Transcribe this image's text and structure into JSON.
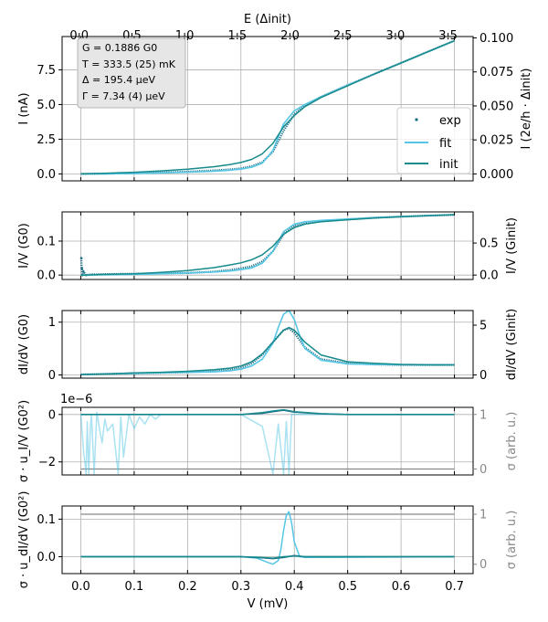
{
  "chart_data": {
    "type": "line",
    "colors": {
      "exp": "#1a6e86",
      "fit": "#55c6e6",
      "init": "#178a8c",
      "grid": "#b0b0b0",
      "aux": "#888888"
    },
    "top_axis": {
      "label": "E (Δinit)",
      "ticks": [
        "0.0",
        "0.5",
        "1.0",
        "1.5",
        "2.0",
        "2.5",
        "3.0",
        "3.5"
      ],
      "tick_values": [
        0,
        0.5,
        1.0,
        1.5,
        2.0,
        2.5,
        3.0,
        3.5
      ],
      "xlim": [
        -0.1625,
        3.7375
      ]
    },
    "x_axis": {
      "label": "V (mV)",
      "ticks": [
        "0.0",
        "0.1",
        "0.2",
        "0.3",
        "0.4",
        "0.5",
        "0.6",
        "0.7"
      ],
      "tick_values": [
        0,
        0.1,
        0.2,
        0.3,
        0.4,
        0.5,
        0.6,
        0.7
      ],
      "xlim": [
        -0.035,
        0.735
      ]
    },
    "annotation": {
      "lines": [
        "G = 0.1886 G0",
        "T = 333.5 (25) mK",
        "Δ = 195.4 μeV",
        "Γ = 7.34 (4) μeV"
      ]
    },
    "legend": {
      "position": "lower-right",
      "entries": [
        "exp",
        "fit",
        "init"
      ]
    },
    "panels": [
      {
        "id": "current",
        "ylabel": "I (nA)",
        "ylabel_right": "I (2e/h · Δinit)",
        "ylim": [
          -0.5,
          9.9
        ],
        "yticks": [
          "0.0",
          "2.5",
          "5.0",
          "7.5"
        ],
        "ytick_values": [
          0,
          2.5,
          5.0,
          7.5
        ],
        "yticks_right": [
          "0.000",
          "0.025",
          "0.050",
          "0.075",
          "0.100"
        ],
        "ytick_values_right": [
          0,
          2.45,
          4.9,
          7.35,
          9.8
        ],
        "series": [
          {
            "name": "exp",
            "style": "dots",
            "x": [
              0,
              0.05,
              0.1,
              0.15,
              0.2,
              0.25,
              0.28,
              0.3,
              0.32,
              0.34,
              0.36,
              0.38,
              0.4,
              0.42,
              0.45,
              0.5,
              0.55,
              0.6,
              0.65,
              0.7
            ],
            "y": [
              0,
              0.02,
              0.05,
              0.1,
              0.16,
              0.25,
              0.32,
              0.4,
              0.55,
              0.85,
              1.6,
              3.1,
              4.3,
              4.95,
              5.55,
              6.4,
              7.2,
              8.0,
              8.8,
              9.6
            ]
          },
          {
            "name": "fit",
            "style": "line",
            "x": [
              0,
              0.05,
              0.1,
              0.15,
              0.2,
              0.25,
              0.28,
              0.3,
              0.32,
              0.34,
              0.36,
              0.38,
              0.4,
              0.42,
              0.45,
              0.5,
              0.55,
              0.6,
              0.65,
              0.7
            ],
            "y": [
              0,
              0.01,
              0.03,
              0.07,
              0.12,
              0.2,
              0.27,
              0.34,
              0.48,
              0.78,
              1.7,
              3.6,
              4.55,
              5.0,
              5.55,
              6.4,
              7.2,
              8.0,
              8.8,
              9.6
            ]
          },
          {
            "name": "init",
            "style": "line",
            "x": [
              0,
              0.05,
              0.1,
              0.15,
              0.2,
              0.25,
              0.28,
              0.3,
              0.32,
              0.34,
              0.36,
              0.38,
              0.4,
              0.42,
              0.45,
              0.5,
              0.55,
              0.6,
              0.65,
              0.7
            ],
            "y": [
              0,
              0.05,
              0.12,
              0.22,
              0.34,
              0.52,
              0.68,
              0.82,
              1.05,
              1.45,
              2.2,
              3.4,
              4.2,
              4.85,
              5.5,
              6.35,
              7.2,
              8.0,
              8.8,
              9.6
            ]
          }
        ]
      },
      {
        "id": "conductance",
        "ylabel": "I/V (G0)",
        "ylabel_right": "I/V (Ginit)",
        "ylim": [
          -0.013,
          0.186
        ],
        "yticks": [
          "0.0",
          "0.1"
        ],
        "ytick_values": [
          0,
          0.1
        ],
        "yticks_right": [
          "0.0",
          "0.5"
        ],
        "ytick_values_right": [
          0,
          0.0943
        ],
        "series": [
          {
            "name": "exp",
            "style": "dots",
            "x": [
              0.001,
              0.002,
              0.003,
              0.005,
              0.01,
              0.02,
              0.05,
              0.1,
              0.15,
              0.2,
              0.25,
              0.28,
              0.3,
              0.32,
              0.34,
              0.36,
              0.38,
              0.4,
              0.42,
              0.45,
              0.5,
              0.55,
              0.6,
              0.65,
              0.7
            ],
            "y": [
              0.05,
              0.02,
              0.0,
              0.01,
              0.0,
              0.002,
              0.003,
              0.004,
              0.005,
              0.006,
              0.01,
              0.015,
              0.02,
              0.026,
              0.04,
              0.07,
              0.12,
              0.145,
              0.152,
              0.158,
              0.164,
              0.169,
              0.172,
              0.175,
              0.177
            ]
          },
          {
            "name": "fit",
            "style": "line",
            "x": [
              0,
              0.05,
              0.1,
              0.15,
              0.2,
              0.25,
              0.28,
              0.3,
              0.32,
              0.34,
              0.36,
              0.38,
              0.4,
              0.42,
              0.45,
              0.5,
              0.55,
              0.6,
              0.65,
              0.7
            ],
            "y": [
              0,
              0.001,
              0.002,
              0.004,
              0.006,
              0.009,
              0.012,
              0.016,
              0.021,
              0.035,
              0.07,
              0.128,
              0.15,
              0.157,
              0.161,
              0.165,
              0.169,
              0.172,
              0.175,
              0.178
            ]
          },
          {
            "name": "init",
            "style": "line",
            "x": [
              0,
              0.05,
              0.1,
              0.15,
              0.2,
              0.25,
              0.28,
              0.3,
              0.32,
              0.34,
              0.36,
              0.38,
              0.4,
              0.42,
              0.45,
              0.5,
              0.55,
              0.6,
              0.65,
              0.7
            ],
            "y": [
              0,
              0.002,
              0.004,
              0.008,
              0.013,
              0.022,
              0.03,
              0.036,
              0.045,
              0.06,
              0.085,
              0.12,
              0.14,
              0.15,
              0.157,
              0.163,
              0.168,
              0.172,
              0.175,
              0.178
            ]
          }
        ]
      },
      {
        "id": "differential",
        "ylabel": "dI/dV (G0)",
        "ylabel_right": "dI/dV (Ginit)",
        "ylim": [
          -0.06,
          1.22
        ],
        "yticks": [
          "0",
          "1"
        ],
        "ytick_values": [
          0,
          1
        ],
        "yticks_right": [
          "0",
          "5"
        ],
        "ytick_values_right": [
          0,
          0.943
        ],
        "series": [
          {
            "name": "exp",
            "style": "dots",
            "x": [
              0,
              0.05,
              0.1,
              0.15,
              0.2,
              0.25,
              0.28,
              0.3,
              0.32,
              0.34,
              0.36,
              0.38,
              0.39,
              0.4,
              0.42,
              0.45,
              0.5,
              0.55,
              0.6,
              0.65,
              0.7
            ],
            "y": [
              0.01,
              0.02,
              0.03,
              0.04,
              0.05,
              0.07,
              0.1,
              0.14,
              0.22,
              0.38,
              0.62,
              0.85,
              0.88,
              0.8,
              0.52,
              0.3,
              0.22,
              0.2,
              0.19,
              0.19,
              0.19
            ]
          },
          {
            "name": "fit",
            "style": "line",
            "x": [
              0,
              0.05,
              0.1,
              0.15,
              0.2,
              0.25,
              0.28,
              0.3,
              0.32,
              0.34,
              0.36,
              0.37,
              0.38,
              0.39,
              0.4,
              0.41,
              0.42,
              0.45,
              0.5,
              0.55,
              0.6,
              0.65,
              0.7
            ],
            "y": [
              0.01,
              0.02,
              0.03,
              0.04,
              0.05,
              0.06,
              0.08,
              0.11,
              0.17,
              0.3,
              0.6,
              0.9,
              1.15,
              1.22,
              1.05,
              0.75,
              0.5,
              0.28,
              0.21,
              0.2,
              0.19,
              0.19,
              0.19
            ]
          },
          {
            "name": "init",
            "style": "line",
            "x": [
              0,
              0.05,
              0.1,
              0.15,
              0.2,
              0.25,
              0.28,
              0.3,
              0.32,
              0.34,
              0.36,
              0.38,
              0.39,
              0.4,
              0.42,
              0.45,
              0.5,
              0.55,
              0.6,
              0.65,
              0.7
            ],
            "y": [
              0.01,
              0.02,
              0.04,
              0.05,
              0.07,
              0.1,
              0.13,
              0.17,
              0.25,
              0.4,
              0.62,
              0.85,
              0.9,
              0.85,
              0.62,
              0.38,
              0.25,
              0.22,
              0.2,
              0.19,
              0.19
            ]
          }
        ]
      },
      {
        "id": "uncertainty_iv",
        "ylabel": "σ · u_I/V (G0²)",
        "ylabel_right": "σ (arb. u.)",
        "offset_text": "1e−6",
        "ylim": [
          -2.55,
          0.3
        ],
        "yticks": [
          "0",
          "−2"
        ],
        "ytick_values": [
          0,
          -2
        ],
        "yticks_right": [
          "0",
          "1"
        ],
        "ytick_values_right": [
          -2.3,
          0
        ],
        "series": [
          {
            "name": "sigma-envelope",
            "style": "aux",
            "x": [
              0,
              0.7
            ],
            "y": [
              -2.3,
              -2.3
            ]
          },
          {
            "name": "fit-uncertainty",
            "style": "fit-light",
            "x": [
              0,
              0.005,
              0.01,
              0.012,
              0.015,
              0.018,
              0.02,
              0.025,
              0.03,
              0.035,
              0.04,
              0.045,
              0.05,
              0.06,
              0.07,
              0.075,
              0.08,
              0.09,
              0.1,
              0.11,
              0.12,
              0.13,
              0.14,
              0.15,
              0.18,
              0.2,
              0.3,
              0.34,
              0.35,
              0.36,
              0.37,
              0.38,
              0.385,
              0.39,
              0.395,
              0.4,
              0.5,
              0.6,
              0.7
            ],
            "y": [
              0,
              -1.5,
              -2.5,
              -0.3,
              -2.5,
              -0.5,
              0.0,
              -2.5,
              0.1,
              -0.6,
              -1.2,
              -0.2,
              -0.7,
              -0.4,
              -2.5,
              -0.1,
              -1.8,
              0.0,
              -0.6,
              -0.1,
              -0.4,
              0.0,
              -0.2,
              0.0,
              0.0,
              0.0,
              0.0,
              -0.5,
              -1.5,
              -2.5,
              -0.4,
              -2.5,
              -0.3,
              -2.5,
              0.0,
              0.0,
              0.0,
              0.0,
              0.0
            ]
          },
          {
            "name": "exp",
            "style": "line-exp",
            "x": [
              0,
              0.1,
              0.2,
              0.3,
              0.34,
              0.36,
              0.38,
              0.4,
              0.45,
              0.5,
              0.6,
              0.7
            ],
            "y": [
              0,
              0,
              0,
              0,
              0.05,
              0.12,
              0.18,
              0.1,
              0.03,
              0,
              0,
              0
            ]
          },
          {
            "name": "init",
            "style": "line-init",
            "x": [
              0,
              0.1,
              0.2,
              0.3,
              0.34,
              0.36,
              0.38,
              0.4,
              0.45,
              0.5,
              0.6,
              0.7
            ],
            "y": [
              0,
              0,
              0,
              0,
              0.08,
              0.15,
              0.2,
              0.12,
              0.04,
              0,
              0,
              0
            ]
          }
        ]
      },
      {
        "id": "uncertainty_didv",
        "ylabel": "σ · u_dI/dV (G0²)",
        "ylabel_right": "σ (arb. u.)",
        "ylim": [
          -0.045,
          0.135
        ],
        "yticks": [
          "0.0",
          "0.1"
        ],
        "ytick_values": [
          0,
          0.1
        ],
        "yticks_right": [
          "0",
          "1"
        ],
        "ytick_values_right": [
          -0.02,
          0.113
        ],
        "series": [
          {
            "name": "sigma-envelope",
            "style": "aux",
            "x": [
              0,
              0.7
            ],
            "y": [
              0.113,
              0.113
            ]
          },
          {
            "name": "fit-uncertainty",
            "style": "fit-light",
            "x": [
              0,
              0.3,
              0.33,
              0.35,
              0.36,
              0.37,
              0.375,
              0.38,
              0.385,
              0.39,
              0.395,
              0.4,
              0.41,
              0.42,
              0.7
            ],
            "y": [
              0,
              0,
              -0.004,
              -0.015,
              -0.02,
              -0.01,
              0.02,
              0.07,
              0.11,
              0.12,
              0.09,
              0.04,
              0.0,
              -0.002,
              0
            ]
          },
          {
            "name": "exp",
            "style": "line-exp",
            "x": [
              0,
              0.3,
              0.34,
              0.36,
              0.38,
              0.4,
              0.42,
              0.7
            ],
            "y": [
              0,
              0,
              -0.003,
              -0.005,
              -0.002,
              0.003,
              0,
              0
            ]
          },
          {
            "name": "init",
            "style": "line-init",
            "x": [
              0,
              0.3,
              0.34,
              0.36,
              0.38,
              0.4,
              0.42,
              0.7
            ],
            "y": [
              0,
              0,
              -0.002,
              -0.004,
              0.0,
              0.002,
              0,
              0
            ]
          }
        ]
      }
    ]
  }
}
